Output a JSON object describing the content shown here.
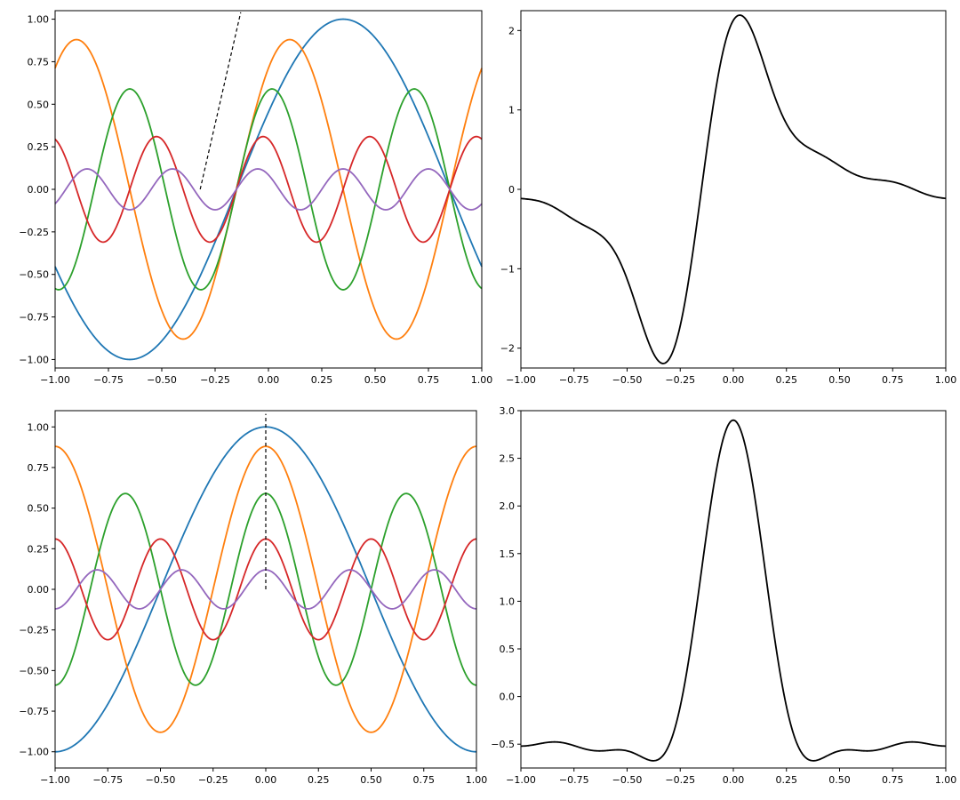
{
  "chart_data": [
    {
      "type": "line",
      "title": "",
      "xlabel": "",
      "ylabel": "",
      "xlim": [
        -1.0,
        1.0
      ],
      "ylim": [
        -1.05,
        1.05
      ],
      "xticks": [
        -1.0,
        -0.75,
        -0.5,
        -0.25,
        0.0,
        0.25,
        0.5,
        0.75,
        1.0
      ],
      "xtick_labels": [
        "−1.00",
        "−0.75",
        "−0.50",
        "−0.25",
        "0.00",
        "0.25",
        "0.50",
        "0.75",
        "1.00"
      ],
      "yticks": [
        -1.0,
        -0.75,
        -0.5,
        -0.25,
        0.0,
        0.25,
        0.5,
        0.75,
        1.0
      ],
      "ytick_labels": [
        "−1.00",
        "−0.75",
        "−0.50",
        "−0.25",
        "0.00",
        "0.25",
        "0.50",
        "0.75",
        "1.00"
      ],
      "grid": false,
      "series": [
        {
          "color": "#1f77b4",
          "formula": "sin",
          "amplitude": 1.0,
          "frequency": 1,
          "phase_shift": 0.15
        },
        {
          "color": "#ff7f0e",
          "formula": "sin",
          "amplitude": 0.88,
          "frequency": 2,
          "phase_shift": 0.15
        },
        {
          "color": "#2ca02c",
          "formula": "sin",
          "amplitude": 0.59,
          "frequency": 3,
          "phase_shift": 0.15
        },
        {
          "color": "#d62728",
          "formula": "sin",
          "amplitude": 0.31,
          "frequency": 4,
          "phase_shift": 0.15
        },
        {
          "color": "#9467bd",
          "formula": "sin",
          "amplitude": 0.12,
          "frequency": 5,
          "phase_shift": 0.15
        }
      ],
      "reference_line": {
        "color": "#000000",
        "style": "dashed",
        "x": [
          -0.32,
          -0.13
        ],
        "y": [
          0.0,
          1.04
        ]
      }
    },
    {
      "type": "line",
      "title": "",
      "xlabel": "",
      "ylabel": "",
      "xlim": [
        -1.0,
        1.0
      ],
      "ylim": [
        -2.25,
        2.25
      ],
      "xticks": [
        -1.0,
        -0.75,
        -0.5,
        -0.25,
        0.0,
        0.25,
        0.5,
        0.75,
        1.0
      ],
      "xtick_labels": [
        "−1.00",
        "−0.75",
        "−0.50",
        "−0.25",
        "0.00",
        "0.25",
        "0.50",
        "0.75",
        "1.00"
      ],
      "yticks": [
        -2,
        -1,
        0,
        1,
        2
      ],
      "ytick_labels": [
        "−2",
        "−1",
        "0",
        "1",
        "2"
      ],
      "grid": false,
      "series": [
        {
          "color": "#000000",
          "formula": "sum_of_panel_1"
        }
      ]
    },
    {
      "type": "line",
      "title": "",
      "xlabel": "",
      "ylabel": "",
      "xlim": [
        -1.0,
        1.0
      ],
      "ylim": [
        -1.1,
        1.1
      ],
      "xticks": [
        -1.0,
        -0.75,
        -0.5,
        -0.25,
        0.0,
        0.25,
        0.5,
        0.75,
        1.0
      ],
      "xtick_labels": [
        "−1.00",
        "−0.75",
        "−0.50",
        "−0.25",
        "0.00",
        "0.25",
        "0.50",
        "0.75",
        "1.00"
      ],
      "yticks": [
        -1.0,
        -0.75,
        -0.5,
        -0.25,
        0.0,
        0.25,
        0.5,
        0.75,
        1.0
      ],
      "ytick_labels": [
        "−1.00",
        "−0.75",
        "−0.50",
        "−0.25",
        "0.00",
        "0.25",
        "0.50",
        "0.75",
        "1.00"
      ],
      "grid": false,
      "series": [
        {
          "color": "#1f77b4",
          "formula": "cos",
          "amplitude": 1.0,
          "frequency": 1
        },
        {
          "color": "#ff7f0e",
          "formula": "cos",
          "amplitude": 0.88,
          "frequency": 2
        },
        {
          "color": "#2ca02c",
          "formula": "cos",
          "amplitude": 0.59,
          "frequency": 3
        },
        {
          "color": "#d62728",
          "formula": "cos",
          "amplitude": 0.31,
          "frequency": 4
        },
        {
          "color": "#9467bd",
          "formula": "cos",
          "amplitude": 0.12,
          "frequency": 5
        }
      ],
      "reference_line": {
        "color": "#000000",
        "style": "dashed",
        "x": [
          0.0,
          0.0
        ],
        "y": [
          0.0,
          1.08
        ]
      }
    },
    {
      "type": "line",
      "title": "",
      "xlabel": "",
      "ylabel": "",
      "xlim": [
        -1.0,
        1.0
      ],
      "ylim": [
        -0.75,
        3.0
      ],
      "xticks": [
        -1.0,
        -0.75,
        -0.5,
        -0.25,
        0.0,
        0.25,
        0.5,
        0.75,
        1.0
      ],
      "xtick_labels": [
        "−1.00",
        "−0.75",
        "−0.50",
        "−0.25",
        "0.00",
        "0.25",
        "0.50",
        "0.75",
        "1.00"
      ],
      "yticks": [
        -0.5,
        0.0,
        0.5,
        1.0,
        1.5,
        2.0,
        2.5,
        3.0
      ],
      "ytick_labels": [
        "−0.5",
        "0.0",
        "0.5",
        "1.0",
        "1.5",
        "2.0",
        "2.5",
        "3.0"
      ],
      "grid": false,
      "series": [
        {
          "color": "#000000",
          "formula": "sum_of_panel_3"
        }
      ]
    }
  ]
}
